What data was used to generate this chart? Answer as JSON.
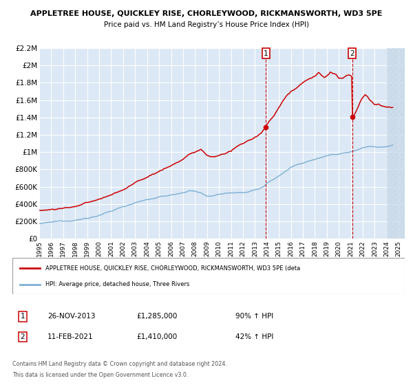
{
  "title": "APPLETREE HOUSE, QUICKLEY RISE, CHORLEYWOOD, RICKMANSWORTH, WD3 5PE",
  "subtitle": "Price paid vs. HM Land Registry’s House Price Index (HPI)",
  "ylim": [
    0,
    2200000
  ],
  "xlim_start": 1995,
  "xlim_end": 2025.5,
  "yticks": [
    0,
    200000,
    400000,
    600000,
    800000,
    1000000,
    1200000,
    1400000,
    1600000,
    1800000,
    2000000,
    2200000
  ],
  "ytick_labels": [
    "£0",
    "£200K",
    "£400K",
    "£600K",
    "£800K",
    "£1M",
    "£1.2M",
    "£1.4M",
    "£1.6M",
    "£1.8M",
    "£2M",
    "£2.2M"
  ],
  "xticks": [
    1995,
    1996,
    1997,
    1998,
    1999,
    2000,
    2001,
    2002,
    2003,
    2004,
    2005,
    2006,
    2007,
    2008,
    2009,
    2010,
    2011,
    2012,
    2013,
    2014,
    2015,
    2016,
    2017,
    2018,
    2019,
    2020,
    2021,
    2022,
    2023,
    2024,
    2025
  ],
  "red_line_color": "#cc0000",
  "blue_line_color": "#7bafd4",
  "background_plot_color": "#dce8f5",
  "grid_color": "#ffffff",
  "hatch_color": "#c8d8e8",
  "sale1_x": 2013.91,
  "sale1_price": 1285000,
  "sale2_x": 2021.12,
  "sale2_price": 1410000,
  "legend1_text": "APPLETREE HOUSE, QUICKLEY RISE, CHORLEYWOOD, RICKMANSWORTH, WD3 5PE (deta",
  "legend2_text": "HPI: Average price, detached house, Three Rivers",
  "ann1_date": "26-NOV-2013",
  "ann1_price": "£1,285,000",
  "ann1_pct": "90% ↑ HPI",
  "ann2_date": "11-FEB-2021",
  "ann2_price": "£1,410,000",
  "ann2_pct": "42% ↑ HPI",
  "footer1": "Contains HM Land Registry data © Crown copyright and database right 2024.",
  "footer2": "This data is licensed under the Open Government Licence v3.0."
}
